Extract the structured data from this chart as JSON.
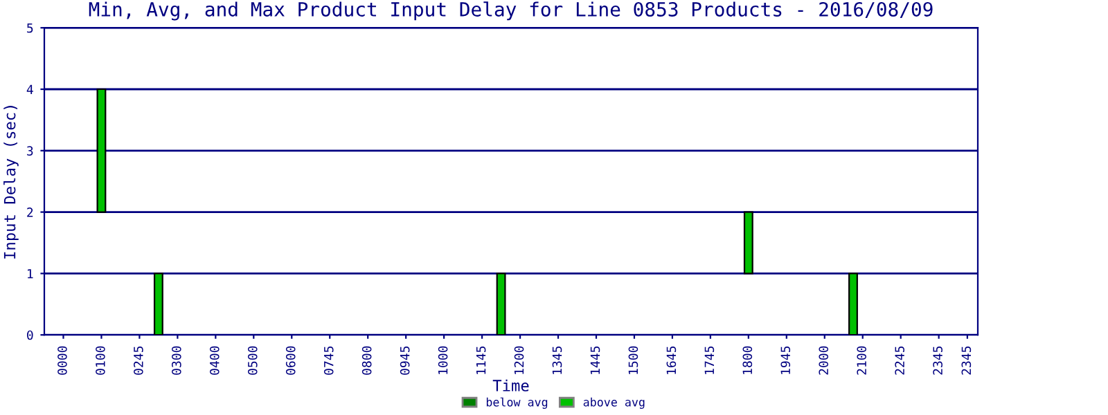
{
  "chart_data": {
    "type": "bar",
    "title": "Min, Avg, and Max Product Input Delay for Line 0853 Products - 2016/08/09",
    "xlabel": "Time",
    "ylabel": "Input Delay (sec)",
    "categories": [
      "0000",
      null,
      null,
      null,
      "0100",
      null,
      null,
      null,
      "0245",
      null,
      null,
      null,
      "0300",
      null,
      null,
      null,
      "0400",
      null,
      null,
      null,
      "0500",
      null,
      null,
      null,
      "0600",
      null,
      null,
      null,
      "0745",
      null,
      null,
      null,
      "0800",
      null,
      null,
      null,
      "0945",
      null,
      null,
      null,
      "1000",
      null,
      null,
      null,
      "1145",
      null,
      null,
      null,
      "1200",
      null,
      null,
      null,
      "1345",
      null,
      null,
      null,
      "1445",
      null,
      null,
      null,
      "1500",
      null,
      null,
      null,
      "1645",
      null,
      null,
      null,
      "1745",
      null,
      null,
      null,
      "1800",
      null,
      null,
      null,
      "1945",
      null,
      null,
      null,
      "2000",
      null,
      null,
      null,
      "2100",
      null,
      null,
      null,
      "2245",
      null,
      null,
      null,
      "2345",
      null,
      null,
      "2345"
    ],
    "series": [
      {
        "name": "below avg",
        "color": "#008000",
        "values": [
          null,
          null,
          null,
          null,
          null,
          null,
          null,
          null,
          null,
          null,
          null,
          null,
          null,
          null,
          null,
          null,
          null,
          null,
          null,
          null,
          null,
          null,
          null,
          null,
          null,
          null,
          null,
          null,
          null,
          null,
          null,
          null,
          null,
          null,
          null,
          null,
          null,
          null,
          null,
          null,
          null,
          null,
          null,
          null,
          null,
          null,
          null,
          null,
          null,
          null,
          null,
          null,
          null,
          null,
          null,
          null,
          null,
          null,
          null,
          null,
          null,
          null,
          null,
          null,
          null,
          null,
          null,
          null,
          null,
          null,
          null,
          null,
          null,
          null,
          null,
          null,
          null,
          null,
          null,
          null,
          null,
          null,
          null,
          null,
          null,
          null,
          null,
          null,
          null,
          null,
          null,
          null,
          null,
          null,
          null,
          null
        ]
      },
      {
        "name": "above avg",
        "color": "#00c000",
        "values": [
          null,
          null,
          null,
          null,
          2,
          null,
          null,
          null,
          null,
          null,
          1,
          null,
          null,
          null,
          null,
          null,
          null,
          null,
          null,
          null,
          null,
          null,
          null,
          null,
          null,
          null,
          null,
          null,
          null,
          null,
          null,
          null,
          null,
          null,
          null,
          null,
          null,
          null,
          null,
          null,
          null,
          null,
          null,
          null,
          null,
          null,
          1,
          null,
          null,
          null,
          null,
          null,
          null,
          null,
          null,
          null,
          null,
          null,
          null,
          null,
          null,
          null,
          null,
          null,
          null,
          null,
          null,
          null,
          null,
          null,
          null,
          null,
          1,
          null,
          null,
          null,
          null,
          null,
          null,
          null,
          null,
          null,
          null,
          1,
          null,
          null,
          null,
          null,
          null,
          null,
          null,
          null,
          null,
          null,
          null,
          null
        ],
        "base": [
          null,
          null,
          null,
          null,
          2,
          null,
          null,
          null,
          null,
          null,
          0,
          null,
          null,
          null,
          null,
          null,
          null,
          null,
          null,
          null,
          null,
          null,
          null,
          null,
          null,
          null,
          null,
          null,
          null,
          null,
          null,
          null,
          null,
          null,
          null,
          null,
          null,
          null,
          null,
          null,
          null,
          null,
          null,
          null,
          null,
          null,
          0,
          null,
          null,
          null,
          null,
          null,
          null,
          null,
          null,
          null,
          null,
          null,
          null,
          null,
          null,
          null,
          null,
          null,
          null,
          null,
          null,
          null,
          null,
          null,
          null,
          null,
          1,
          null,
          null,
          null,
          null,
          null,
          null,
          null,
          null,
          null,
          null,
          0,
          null,
          null,
          null,
          null,
          null,
          null,
          null,
          null,
          null,
          null,
          null,
          null
        ]
      }
    ],
    "ylim": [
      0,
      5
    ],
    "yticks": [
      0,
      1,
      2,
      3,
      4,
      5
    ],
    "grid": "y",
    "legend": "bottom"
  }
}
